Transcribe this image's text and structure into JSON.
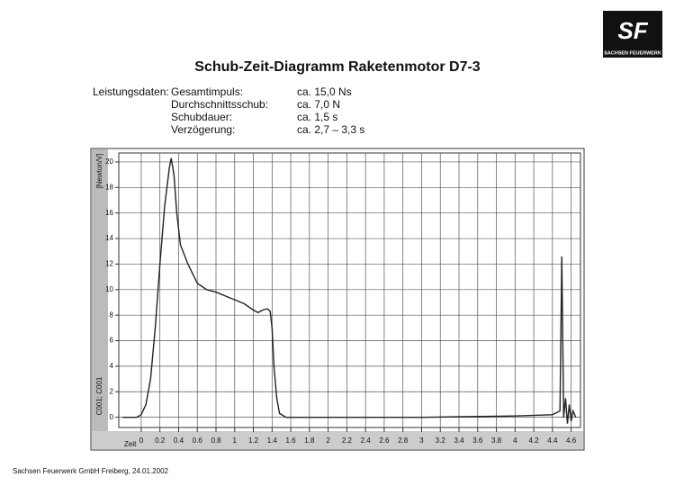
{
  "logo": {
    "mark": "SF",
    "name": "SACHSEN FEUERWERK"
  },
  "specs": {
    "heading": "Leistungsdaten:",
    "rows": [
      {
        "label": "Gesamtimpuls:",
        "value": "ca. 15,0 Ns"
      },
      {
        "label": "Durchschnittsschub:",
        "value": "ca. 7,0 N"
      },
      {
        "label": "Schubdauer:",
        "value": "ca. 1,5 s"
      },
      {
        "label": "Verzögerung:",
        "value": "ca. 2,7 – 3,3 s"
      }
    ]
  },
  "footer": "Sachsen Feuerwerk GmbH Freiberg, 24.01.2002",
  "chart_data": {
    "type": "line",
    "title": "Schub-Zeit-Diagramm Raketenmotor D7-3",
    "y_label": "[Newton/V]",
    "channel_label": "C001; C001",
    "x_label": "Zeit",
    "x": [
      -0.2,
      -0.05,
      0,
      0.05,
      0.1,
      0.15,
      0.2,
      0.25,
      0.3,
      0.32,
      0.35,
      0.38,
      0.42,
      0.5,
      0.6,
      0.7,
      0.8,
      0.9,
      1.0,
      1.1,
      1.2,
      1.25,
      1.3,
      1.35,
      1.38,
      1.4,
      1.42,
      1.45,
      1.48,
      1.55,
      2,
      3,
      4,
      4.4,
      4.48,
      4.5,
      4.52,
      4.54,
      4.56,
      4.58,
      4.6,
      4.62,
      4.65
    ],
    "series": [
      {
        "name": "C001",
        "color": "#222222",
        "values": [
          0,
          0,
          0.2,
          1,
          3,
          7,
          12,
          16.5,
          19.5,
          20.3,
          19,
          16,
          13.5,
          12,
          10.5,
          10,
          9.8,
          9.5,
          9.2,
          8.9,
          8.4,
          8.2,
          8.4,
          8.5,
          8.3,
          7,
          4,
          1.5,
          0.3,
          0,
          0,
          0,
          0.1,
          0.2,
          0.5,
          12.6,
          0,
          1.5,
          -0.5,
          1,
          -0.3,
          0.5,
          0
        ]
      }
    ],
    "xlim": [
      -0.24,
      4.7
    ],
    "ylim": [
      -0.8,
      20.7
    ],
    "xticks": [
      0,
      0.2,
      0.4,
      0.6,
      0.8,
      1,
      1.2,
      1.4,
      1.6,
      1.8,
      2,
      2.2,
      2.4,
      2.6,
      2.8,
      3,
      3.2,
      3.4,
      3.6,
      3.8,
      4,
      4.2,
      4.4,
      4.6
    ],
    "yticks": [
      0,
      2,
      4,
      6,
      8,
      10,
      12,
      14,
      16,
      18,
      20
    ],
    "grid": true
  }
}
